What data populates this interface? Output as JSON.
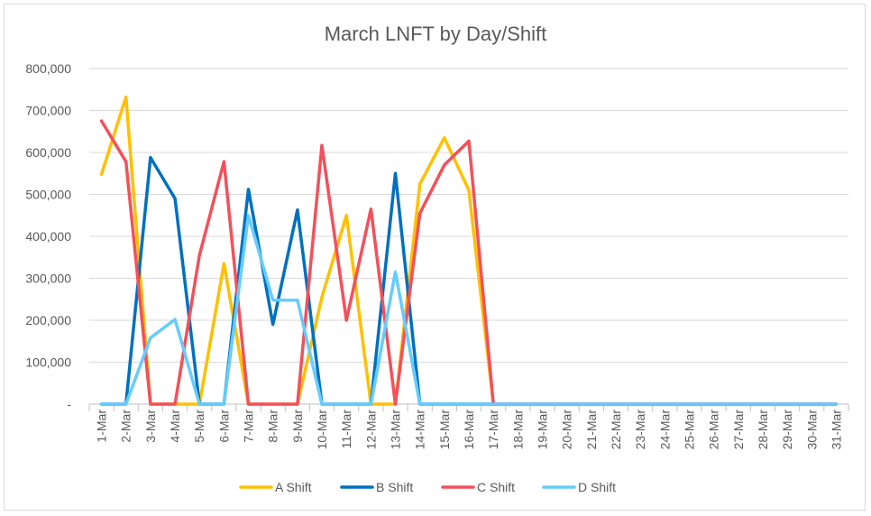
{
  "chart_data": {
    "type": "line",
    "title": "March LNFT by Day/Shift",
    "xlabel": "",
    "ylabel": "",
    "ylim": [
      0,
      800000
    ],
    "yticks": [
      0,
      100000,
      200000,
      300000,
      400000,
      500000,
      600000,
      700000,
      800000
    ],
    "ytick_labels": [
      "-",
      "100,000",
      "200,000",
      "300,000",
      "400,000",
      "500,000",
      "600,000",
      "700,000",
      "800,000"
    ],
    "grid": true,
    "legend_position": "bottom",
    "categories": [
      "1-Mar",
      "2-Mar",
      "3-Mar",
      "4-Mar",
      "5-Mar",
      "6-Mar",
      "7-Mar",
      "8-Mar",
      "9-Mar",
      "10-Mar",
      "11-Mar",
      "12-Mar",
      "13-Mar",
      "14-Mar",
      "15-Mar",
      "16-Mar",
      "17-Mar",
      "18-Mar",
      "19-Mar",
      "20-Mar",
      "21-Mar",
      "22-Mar",
      "23-Mar",
      "24-Mar",
      "25-Mar",
      "26-Mar",
      "27-Mar",
      "28-Mar",
      "29-Mar",
      "30-Mar",
      "31-Mar"
    ],
    "series": [
      {
        "name": "A Shift",
        "color": "#FFC000",
        "values": [
          548000,
          732000,
          0,
          0,
          0,
          335000,
          0,
          0,
          0,
          255000,
          450000,
          0,
          0,
          525000,
          635000,
          510000,
          0,
          0,
          0,
          0,
          0,
          0,
          0,
          0,
          0,
          0,
          0,
          0,
          0,
          0,
          0
        ]
      },
      {
        "name": "B Shift",
        "color": "#0070C0",
        "values": [
          0,
          0,
          588000,
          490000,
          0,
          0,
          512000,
          190000,
          463000,
          0,
          0,
          0,
          550000,
          0,
          0,
          0,
          0,
          0,
          0,
          0,
          0,
          0,
          0,
          0,
          0,
          0,
          0,
          0,
          0,
          0,
          0
        ]
      },
      {
        "name": "C Shift",
        "color": "#F4505A",
        "values": [
          675000,
          578000,
          0,
          0,
          355000,
          578000,
          0,
          0,
          0,
          617000,
          200000,
          465000,
          0,
          455000,
          570000,
          627000,
          0,
          0,
          0,
          0,
          0,
          0,
          0,
          0,
          0,
          0,
          0,
          0,
          0,
          0,
          0
        ]
      },
      {
        "name": "D Shift",
        "color": "#66CCFF",
        "values": [
          0,
          0,
          158000,
          202000,
          0,
          0,
          450000,
          248000,
          248000,
          0,
          0,
          0,
          315000,
          0,
          0,
          0,
          0,
          0,
          0,
          0,
          0,
          0,
          0,
          0,
          0,
          0,
          0,
          0,
          0,
          0,
          0
        ]
      }
    ]
  }
}
